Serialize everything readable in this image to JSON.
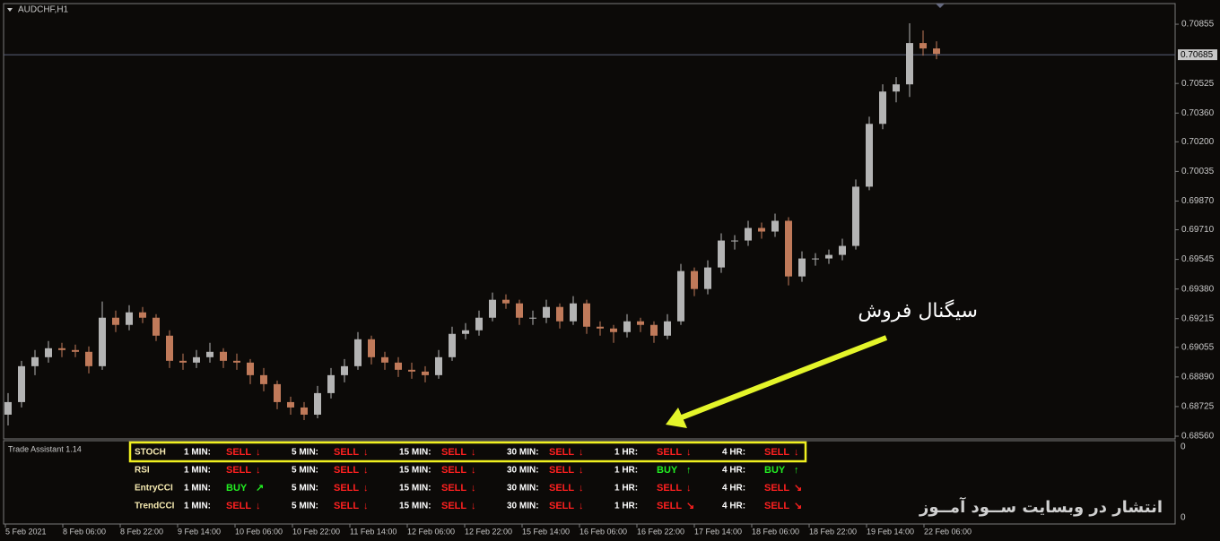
{
  "chart_data": {
    "type": "candlestick",
    "symbol": "AUDCHF,H1",
    "current_price": 0.70685,
    "ylim": [
      0.68545,
      0.7097
    ],
    "yticks": [
      0.70855,
      0.70525,
      {
        "value": 0.7036,
        "label": "0.70360"
      },
      {
        "value": 0.702,
        "label": "0.70200"
      },
      0.70035,
      {
        "value": 0.6987,
        "label": "0.69870"
      },
      {
        "value": 0.6971,
        "label": "0.69710"
      },
      0.69545,
      {
        "value": 0.6938,
        "label": "0.69380"
      },
      0.69215,
      0.69055,
      {
        "value": 0.6889,
        "label": "0.68890"
      },
      0.68725,
      {
        "value": 0.6856,
        "label": "0.68560"
      }
    ],
    "xlabels": [
      "5 Feb 2021",
      "8 Feb 06:00",
      "8 Feb 22:00",
      "9 Feb 14:00",
      "10 Feb 06:00",
      "10 Feb 22:00",
      "11 Feb 14:00",
      "12 Feb 06:00",
      "12 Feb 22:00",
      "15 Feb 14:00",
      "16 Feb 06:00",
      "16 Feb 22:00",
      "17 Feb 14:00",
      "18 Feb 06:00",
      "18 Feb 22:00",
      "19 Feb 14:00",
      "22 Feb 06:00"
    ],
    "up_color": "#b4b4b4",
    "down_color": "#c07a5a",
    "candles": [
      [
        0.6868,
        0.688,
        0.6862,
        0.6875
      ],
      [
        0.6875,
        0.6898,
        0.6872,
        0.6895
      ],
      [
        0.6895,
        0.6904,
        0.689,
        0.69
      ],
      [
        0.69,
        0.6909,
        0.6897,
        0.6905
      ],
      [
        0.6905,
        0.6908,
        0.69,
        0.6904
      ],
      [
        0.6904,
        0.6907,
        0.69,
        0.6903
      ],
      [
        0.6903,
        0.6906,
        0.6891,
        0.6895
      ],
      [
        0.6895,
        0.6931,
        0.6893,
        0.6922
      ],
      [
        0.6922,
        0.6926,
        0.6914,
        0.6918
      ],
      [
        0.6918,
        0.6929,
        0.6915,
        0.6925
      ],
      [
        0.6925,
        0.6928,
        0.6919,
        0.6922
      ],
      [
        0.6922,
        0.6924,
        0.6909,
        0.6912
      ],
      [
        0.6912,
        0.6915,
        0.6894,
        0.6898
      ],
      [
        0.6898,
        0.6902,
        0.6893,
        0.6897
      ],
      [
        0.6897,
        0.6904,
        0.6894,
        0.69
      ],
      [
        0.69,
        0.6908,
        0.6897,
        0.6903
      ],
      [
        0.6903,
        0.6905,
        0.6894,
        0.6898
      ],
      [
        0.6898,
        0.6902,
        0.6893,
        0.6897
      ],
      [
        0.6897,
        0.6899,
        0.6885,
        0.689
      ],
      [
        0.689,
        0.6894,
        0.6881,
        0.6885
      ],
      [
        0.6885,
        0.6887,
        0.6871,
        0.6875
      ],
      [
        0.6875,
        0.6878,
        0.6868,
        0.6872
      ],
      [
        0.6872,
        0.6875,
        0.6865,
        0.6868
      ],
      [
        0.6868,
        0.6884,
        0.6866,
        0.688
      ],
      [
        0.688,
        0.6894,
        0.6877,
        0.689
      ],
      [
        0.689,
        0.6899,
        0.6886,
        0.6895
      ],
      [
        0.6895,
        0.6914,
        0.6893,
        0.691
      ],
      [
        0.691,
        0.6912,
        0.6896,
        0.69
      ],
      [
        0.69,
        0.6903,
        0.6893,
        0.6897
      ],
      [
        0.6897,
        0.69,
        0.6889,
        0.6893
      ],
      [
        0.6893,
        0.6897,
        0.6888,
        0.6892
      ],
      [
        0.6892,
        0.6895,
        0.6886,
        0.689
      ],
      [
        0.689,
        0.6904,
        0.6888,
        0.69
      ],
      [
        0.69,
        0.6917,
        0.6898,
        0.6913
      ],
      [
        0.6913,
        0.6919,
        0.691,
        0.6915
      ],
      [
        0.6915,
        0.6926,
        0.6912,
        0.6922
      ],
      [
        0.6922,
        0.6936,
        0.692,
        0.6932
      ],
      [
        0.6932,
        0.6935,
        0.6927,
        0.693
      ],
      [
        0.693,
        0.6932,
        0.6918,
        0.6922
      ],
      [
        0.6922,
        0.6926,
        0.6918,
        0.6922
      ],
      [
        0.6922,
        0.6932,
        0.6919,
        0.6928
      ],
      [
        0.6928,
        0.693,
        0.6916,
        0.692
      ],
      [
        0.692,
        0.6934,
        0.6918,
        0.693
      ],
      [
        0.693,
        0.6932,
        0.6913,
        0.6917
      ],
      [
        0.6917,
        0.692,
        0.6912,
        0.6916
      ],
      [
        0.6916,
        0.6918,
        0.6908,
        0.6914
      ],
      [
        0.6914,
        0.6924,
        0.6911,
        0.692
      ],
      [
        0.692,
        0.6922,
        0.6914,
        0.6918
      ],
      [
        0.6918,
        0.692,
        0.6908,
        0.6912
      ],
      [
        0.6912,
        0.6924,
        0.691,
        0.692
      ],
      [
        0.692,
        0.6952,
        0.6918,
        0.6948
      ],
      [
        0.6948,
        0.695,
        0.6934,
        0.6938
      ],
      [
        0.6938,
        0.6954,
        0.6935,
        0.695
      ],
      [
        0.695,
        0.6969,
        0.6947,
        0.6965
      ],
      [
        0.6965,
        0.6968,
        0.696,
        0.6965
      ],
      [
        0.6965,
        0.6976,
        0.6962,
        0.6972
      ],
      [
        0.6972,
        0.6975,
        0.6966,
        0.697
      ],
      [
        0.697,
        0.698,
        0.6967,
        0.6976
      ],
      [
        0.6976,
        0.6978,
        0.694,
        0.6945
      ],
      [
        0.6945,
        0.6959,
        0.6942,
        0.6955
      ],
      [
        0.6955,
        0.6958,
        0.6951,
        0.6955
      ],
      [
        0.6955,
        0.696,
        0.6952,
        0.6957
      ],
      [
        0.6957,
        0.6966,
        0.6954,
        0.6962
      ],
      [
        0.6962,
        0.6999,
        0.696,
        0.6995
      ],
      [
        0.6995,
        0.7034,
        0.6993,
        0.703
      ],
      [
        0.703,
        0.7052,
        0.7027,
        0.7048
      ],
      [
        0.7048,
        0.7056,
        0.7042,
        0.7052
      ],
      [
        0.7052,
        0.7086,
        0.7045,
        0.7075
      ],
      [
        0.7075,
        0.7082,
        0.7068,
        0.7072
      ],
      [
        0.7072,
        0.7076,
        0.7066,
        0.7069
      ]
    ],
    "annotation": "سیگنال فروش",
    "watermark": "انتشار در وبسایت ســود آمــوز"
  },
  "indicator_panel": {
    "title": "Trade Assistant 1.14",
    "axis_labels": [
      "0",
      "0"
    ],
    "signal_colors": {
      "SELL": "#ff2020",
      "BUY": "#22ee22"
    },
    "rows": [
      {
        "name": "STOCH",
        "cells": [
          {
            "tf": "1 MIN:",
            "signal": "SELL",
            "arrow": "↓"
          },
          {
            "tf": "5 MIN:",
            "signal": "SELL",
            "arrow": "↓"
          },
          {
            "tf": "15 MIN:",
            "signal": "SELL",
            "arrow": "↓"
          },
          {
            "tf": "30 MIN:",
            "signal": "SELL",
            "arrow": "↓"
          },
          {
            "tf": "1 HR:",
            "signal": "SELL",
            "arrow": "↓"
          },
          {
            "tf": "4 HR:",
            "signal": "SELL",
            "arrow": "↓"
          }
        ]
      },
      {
        "name": "RSI",
        "cells": [
          {
            "tf": "1 MIN:",
            "signal": "SELL",
            "arrow": "↓"
          },
          {
            "tf": "5 MIN:",
            "signal": "SELL",
            "arrow": "↓"
          },
          {
            "tf": "15 MIN:",
            "signal": "SELL",
            "arrow": "↓"
          },
          {
            "tf": "30 MIN:",
            "signal": "SELL",
            "arrow": "↓"
          },
          {
            "tf": "1 HR:",
            "signal": "BUY",
            "arrow": "↑"
          },
          {
            "tf": "4 HR:",
            "signal": "BUY",
            "arrow": "↑"
          }
        ]
      },
      {
        "name": "EntryCCI",
        "cells": [
          {
            "tf": "1 MIN:",
            "signal": "BUY",
            "arrow": "↗"
          },
          {
            "tf": "5 MIN:",
            "signal": "SELL",
            "arrow": "↓"
          },
          {
            "tf": "15 MIN:",
            "signal": "SELL",
            "arrow": "↓"
          },
          {
            "tf": "30 MIN:",
            "signal": "SELL",
            "arrow": "↓"
          },
          {
            "tf": "1 HR:",
            "signal": "SELL",
            "arrow": "↓"
          },
          {
            "tf": "4 HR:",
            "signal": "SELL",
            "arrow": "↘"
          }
        ]
      },
      {
        "name": "TrendCCI",
        "cells": [
          {
            "tf": "1 MIN:",
            "signal": "SELL",
            "arrow": "↓"
          },
          {
            "tf": "5 MIN:",
            "signal": "SELL",
            "arrow": "↓"
          },
          {
            "tf": "15 MIN:",
            "signal": "SELL",
            "arrow": "↓"
          },
          {
            "tf": "30 MIN:",
            "signal": "SELL",
            "arrow": "↓"
          },
          {
            "tf": "1 HR:",
            "signal": "SELL",
            "arrow": "↘"
          },
          {
            "tf": "4 HR:",
            "signal": "SELL",
            "arrow": "↘"
          }
        ]
      }
    ]
  }
}
